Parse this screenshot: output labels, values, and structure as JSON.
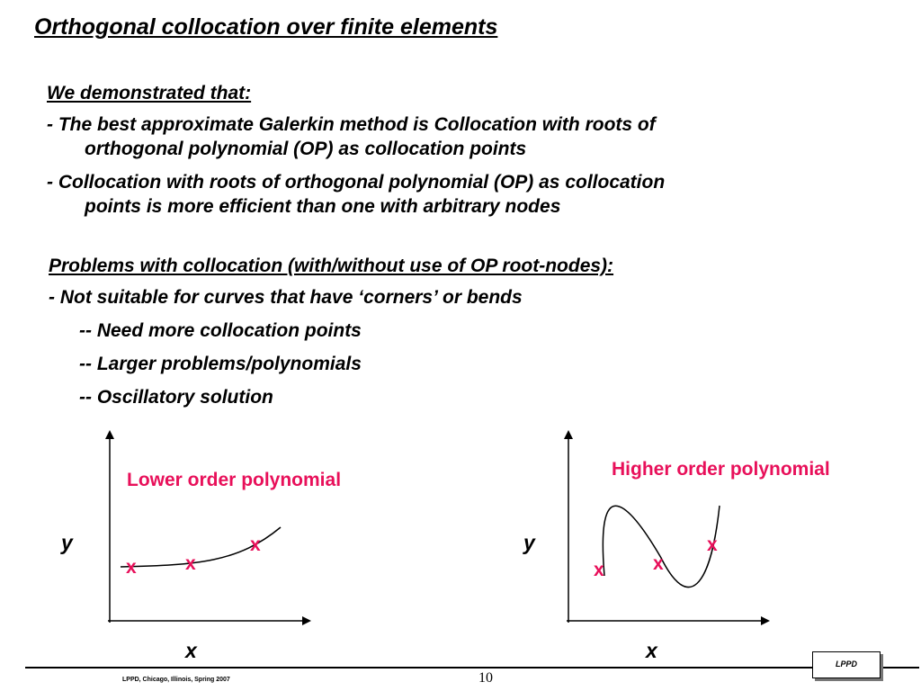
{
  "slide": {
    "title": "Orthogonal collocation over finite elements",
    "section1_heading": "We demonstrated that:",
    "bullet1_line1": "- The best approximate Galerkin method is Collocation with roots of",
    "bullet1_line2": "orthogonal polynomial (OP) as collocation points",
    "bullet2_line1": "- Collocation with roots of orthogonal polynomial (OP) as collocation",
    "bullet2_line2": "points is more efficient than one with arbitrary nodes",
    "section2_heading": "Problems with collocation (with/without use of OP root-nodes):",
    "bullet3": "- Not suitable for curves that have ‘corners’ or bends",
    "sub1": "-- Need more collocation points",
    "sub2": "-- Larger problems/polynomials",
    "sub3": "-- Oscillatory solution"
  },
  "figures": {
    "left": {
      "label": "Lower order polynomial",
      "ylabel": "y",
      "xlabel": "x",
      "marker": "x",
      "color": "#e8105a"
    },
    "right": {
      "label": "Higher order polynomial",
      "ylabel": "y",
      "xlabel": "x",
      "marker": "x",
      "color": "#e8105a"
    }
  },
  "footer": {
    "left_text": "LPPD, Chicago, Illinois, Spring 2007",
    "page_number": "10",
    "logo_text": "LPPD"
  }
}
